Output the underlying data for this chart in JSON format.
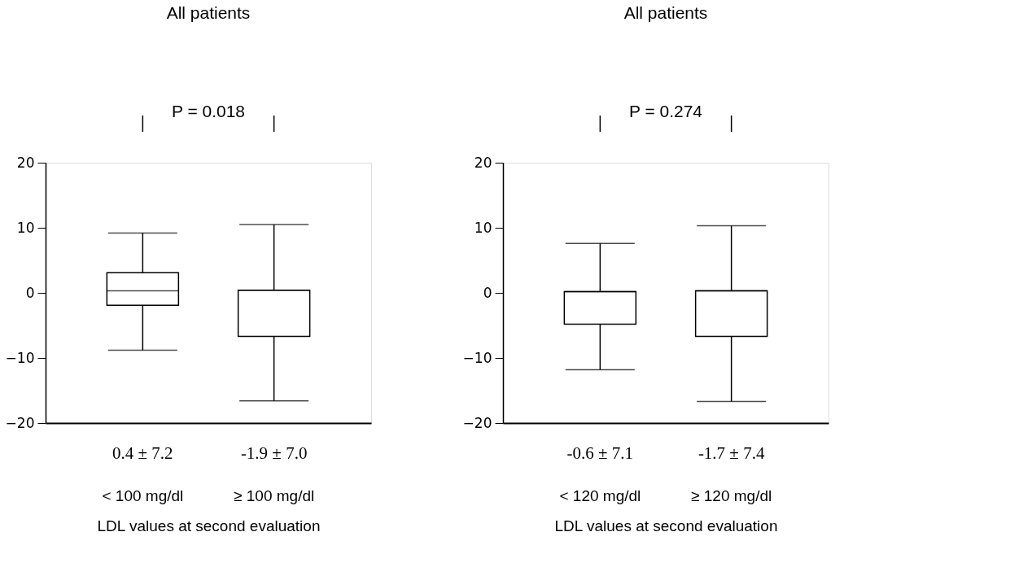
{
  "chart_data": [
    {
      "type": "box",
      "title": "All patients",
      "xlabel": "LDL values at second evaluation",
      "categories": [
        "< 100 mg/dl",
        "≥ 100 mg/dl"
      ],
      "boxes": [
        {
          "low": -8.8,
          "q1": -1.9,
          "median": 0.3,
          "q3": 3.1,
          "high": 9.2
        },
        {
          "low": -16.6,
          "q1": -6.7,
          "median": 0.4,
          "q3": 0.4,
          "high": 10.5
        }
      ],
      "ylim": [
        -20,
        20
      ],
      "yticks": [
        -20,
        -10,
        0,
        10,
        20
      ],
      "grid": false,
      "annotations": [
        "P = 0.018",
        "0.4 ± 7.2",
        "-1.9 ± 7.0"
      ]
    },
    {
      "type": "box",
      "title": "All patients",
      "xlabel": "LDL values at second evaluation",
      "categories": [
        "< 120 mg/dl",
        "≥ 120 mg/dl"
      ],
      "boxes": [
        {
          "low": -11.8,
          "q1": -4.8,
          "median": 0.2,
          "q3": 0.2,
          "high": 7.6
        },
        {
          "low": -16.7,
          "q1": -6.7,
          "median": 0.3,
          "q3": 0.3,
          "high": 10.3
        }
      ],
      "ylim": [
        -20,
        20
      ],
      "yticks": [
        -20,
        -10,
        0,
        10,
        20
      ],
      "grid": false,
      "annotations": [
        "P = 0.274",
        "-0.6 ± 7.1",
        "-1.7 ± 7.4"
      ]
    }
  ]
}
